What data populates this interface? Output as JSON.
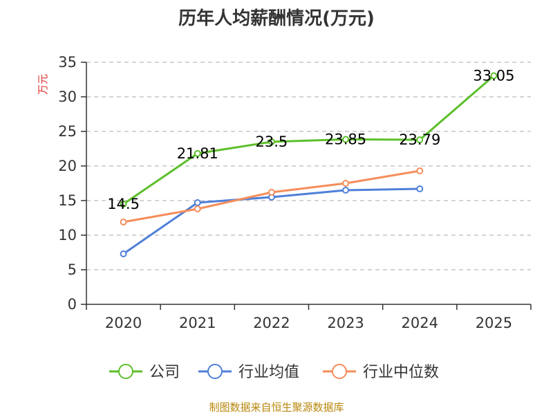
{
  "chart_data": {
    "type": "line",
    "title": "历年人均薪酬情况(万元)",
    "ylabel": "万元",
    "xlabel": "",
    "ylim": [
      0,
      35
    ],
    "yticks": [
      0,
      5,
      10,
      15,
      20,
      25,
      30,
      35
    ],
    "categories": [
      "2020",
      "2021",
      "2022",
      "2023",
      "2024",
      "2025"
    ],
    "series": [
      {
        "name": "公司",
        "color": "#5cbf2a",
        "values": [
          14.5,
          21.81,
          23.5,
          23.85,
          23.79,
          33.05
        ],
        "labels": [
          "14.5",
          "21.81",
          "23.5",
          "23.85",
          "23.79",
          "33.05"
        ]
      },
      {
        "name": "行业均值",
        "color": "#4f7fd9",
        "values": [
          7.3,
          14.7,
          15.5,
          16.5,
          16.7,
          null
        ]
      },
      {
        "name": "行业中位数",
        "color": "#f58d5a",
        "values": [
          11.9,
          13.8,
          16.2,
          17.5,
          19.3,
          null
        ]
      }
    ],
    "legend_position": "bottom",
    "grid": true
  },
  "colors": {
    "axis": "#333333",
    "grid": "#bbbbbb",
    "ylabel": "#e03030",
    "source": "#b8860b"
  },
  "footer": {
    "source": "制图数据来自恒生聚源数据库"
  }
}
